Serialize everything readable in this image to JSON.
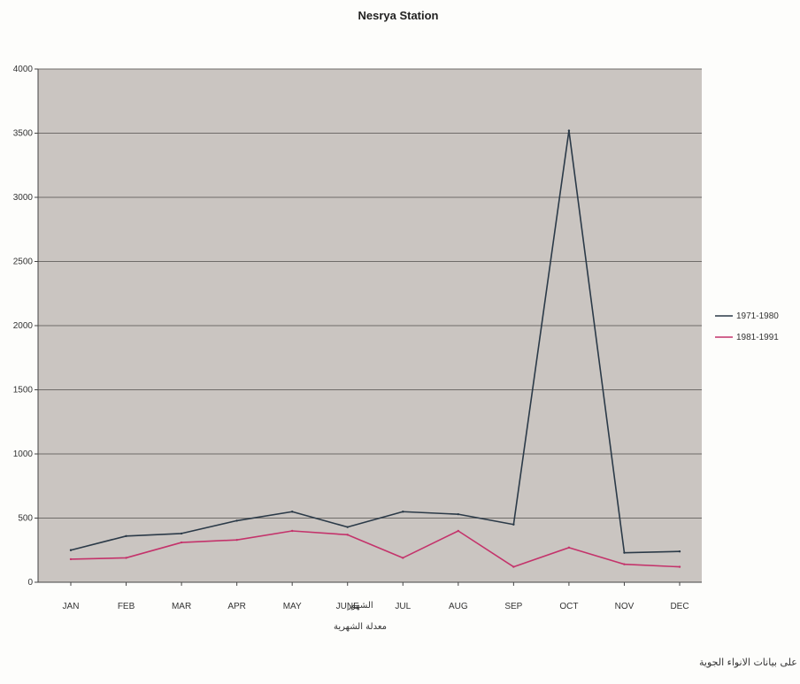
{
  "chart_data": {
    "type": "line",
    "title": "Nesrya Station",
    "categories": [
      "JAN",
      "FEB",
      "MAR",
      "APR",
      "MAY",
      "JUNE",
      "JUL",
      "AUG",
      "SEP",
      "OCT",
      "NOV",
      "DEC"
    ],
    "series": [
      {
        "name": "1971-1980",
        "color": "#2b3a48",
        "values": [
          250,
          360,
          380,
          480,
          550,
          430,
          550,
          530,
          450,
          3520,
          230,
          240
        ]
      },
      {
        "name": "1981-1991",
        "color": "#c4336b",
        "values": [
          180,
          190,
          310,
          330,
          400,
          370,
          190,
          400,
          120,
          270,
          140,
          120
        ]
      }
    ],
    "yticks": [
      0,
      500,
      1000,
      1500,
      2000,
      2500,
      3000,
      3500,
      4000
    ],
    "ylim": [
      0,
      4000
    ],
    "grid": true,
    "legend": "right",
    "plot_background": "#cac5c1",
    "axis_inline_label": "الشهور",
    "x_caption": "معدلة الشهرية",
    "source_note": "من عمل الباحث بالاعتماد على بيانات الانواء الجوية"
  }
}
